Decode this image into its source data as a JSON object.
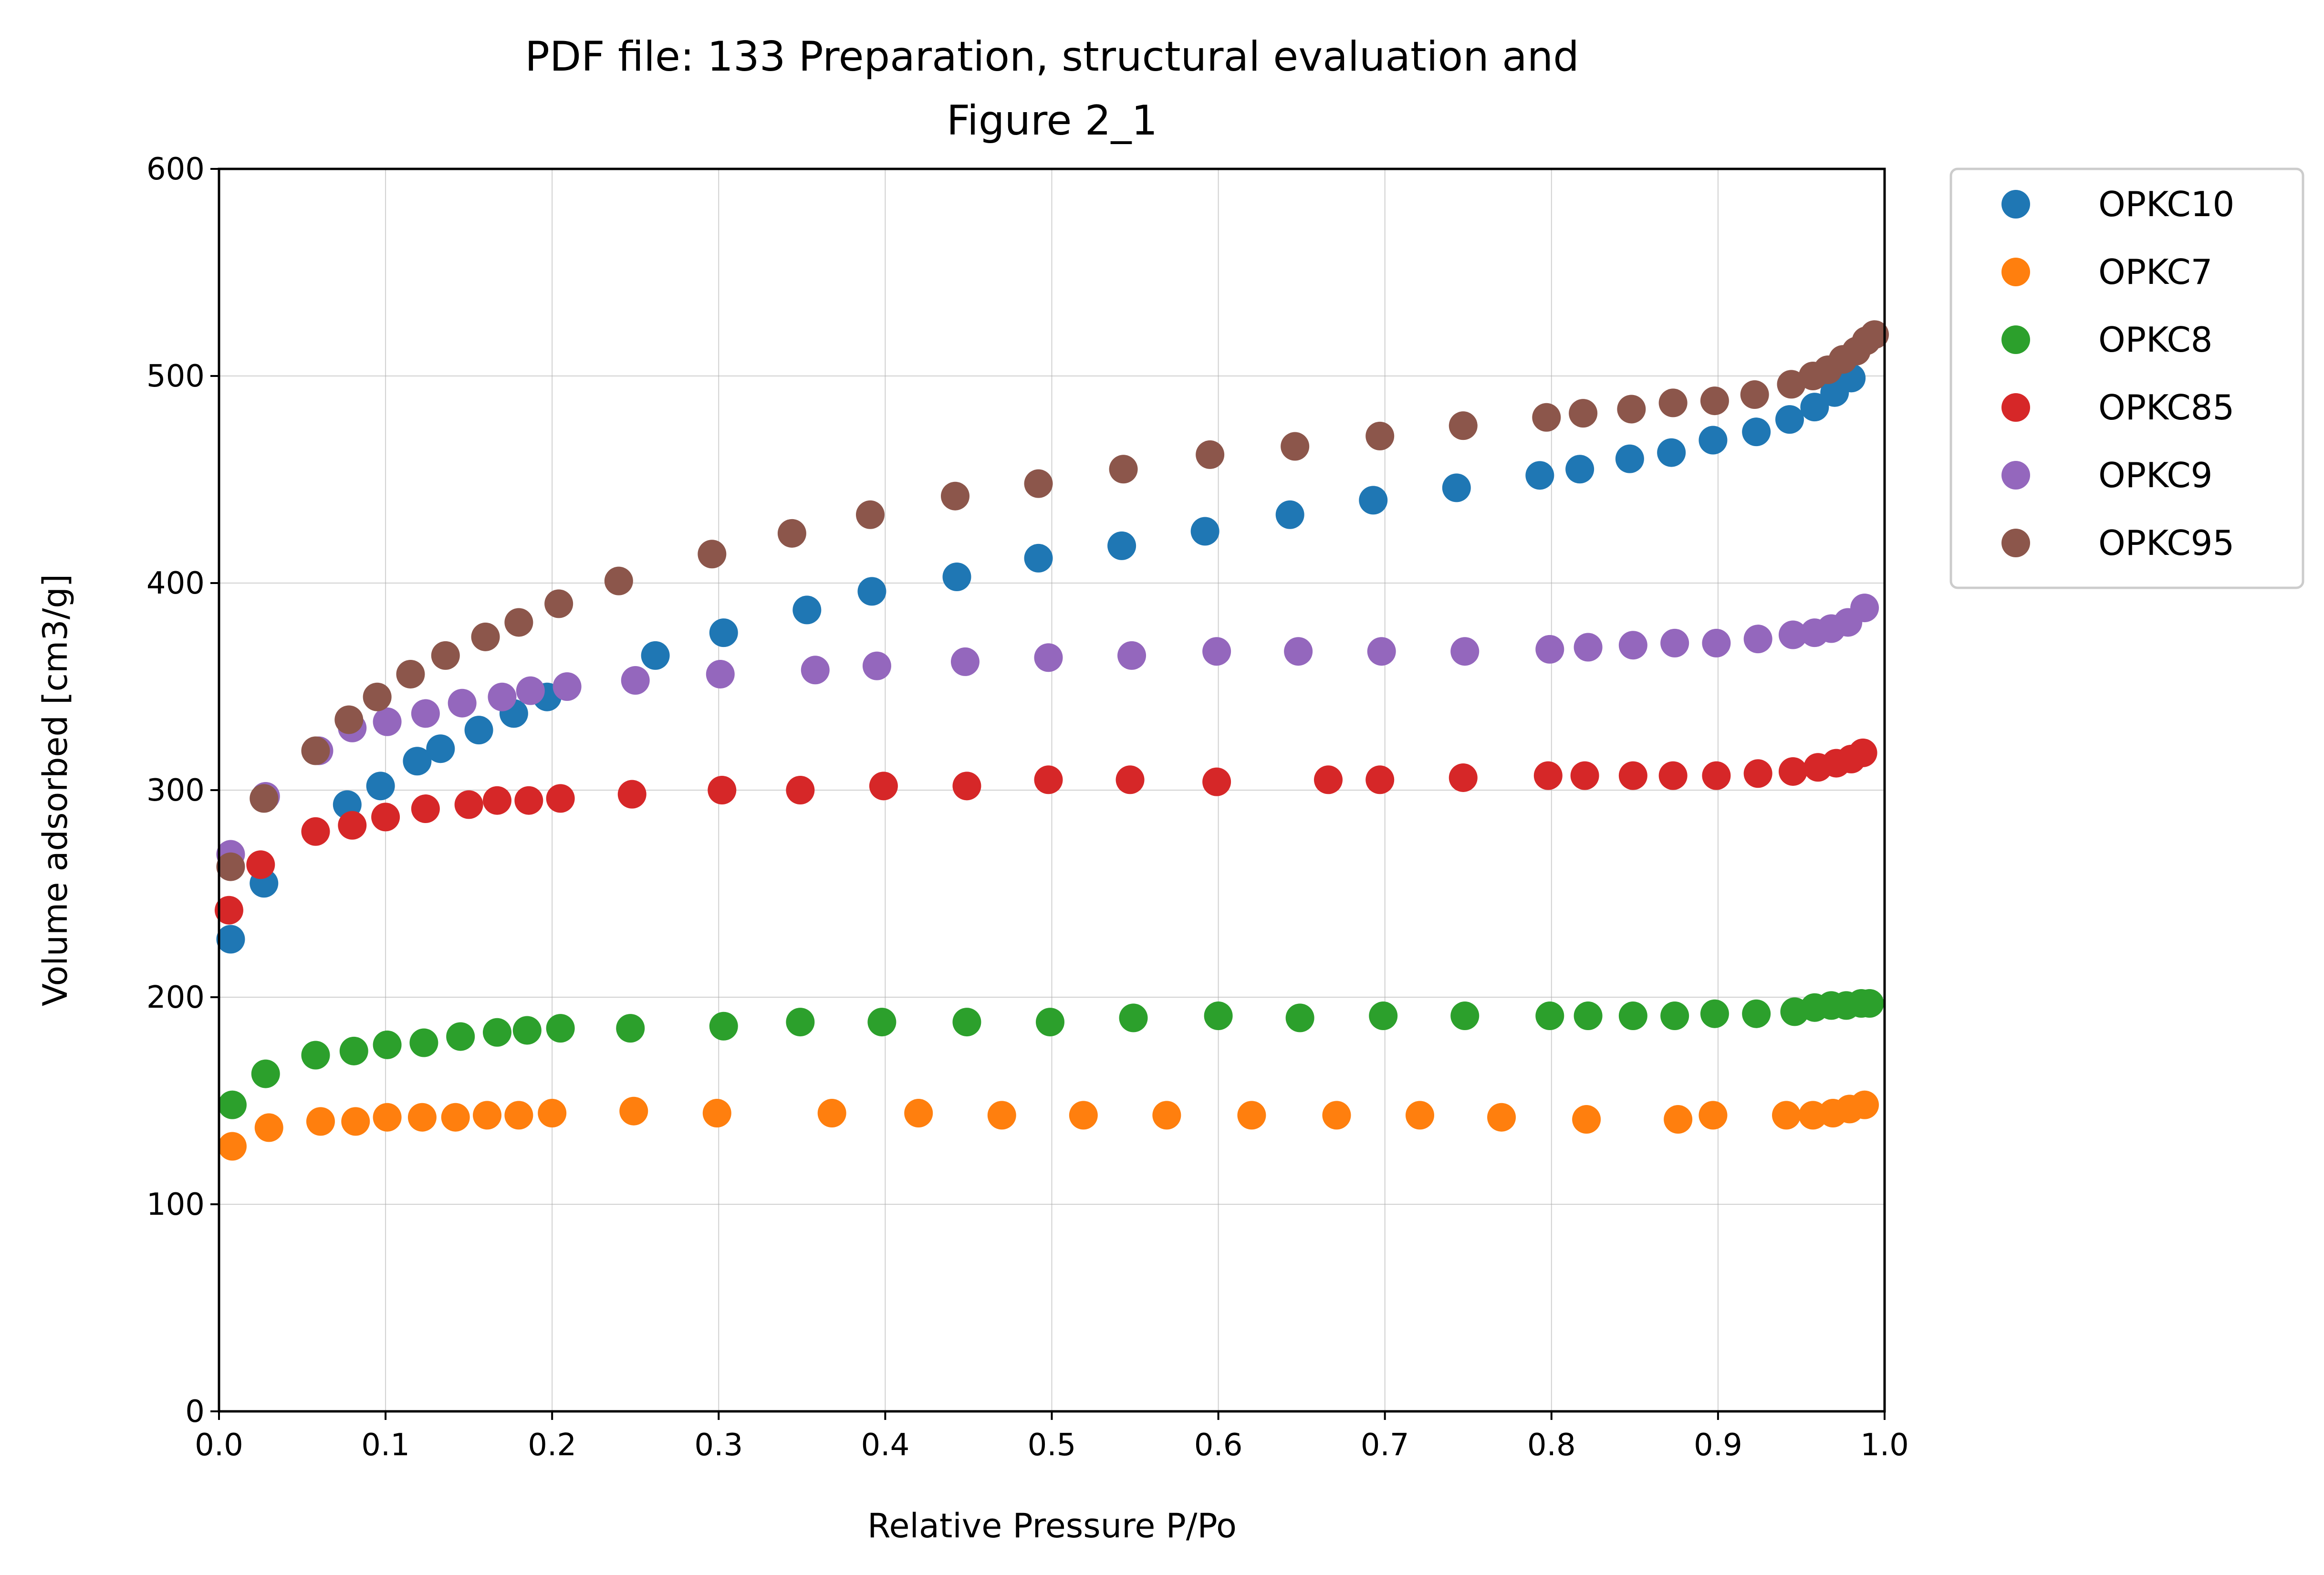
{
  "chart_data": {
    "type": "scatter",
    "title_line1": "PDF file: 133 Preparation, structural evaluation and",
    "title_line2": "Figure 2_1",
    "xlabel": "Relative Pressure P/Po",
    "ylabel": "Volume adsorbed [cm3/g]",
    "xlim": [
      0.0,
      1.0
    ],
    "ylim": [
      0,
      600
    ],
    "xticks": [
      "0.0",
      "0.1",
      "0.2",
      "0.3",
      "0.4",
      "0.5",
      "0.6",
      "0.7",
      "0.8",
      "0.9",
      "1.0"
    ],
    "yticks": [
      "0",
      "100",
      "200",
      "300",
      "400",
      "500",
      "600"
    ],
    "grid": true,
    "legend_position": "outside-top-right",
    "series": [
      {
        "name": "OPKC10",
        "color": "#1f77b4",
        "x": [
          0.007,
          0.027,
          0.077,
          0.097,
          0.119,
          0.133,
          0.156,
          0.177,
          0.197,
          0.262,
          0.303,
          0.353,
          0.392,
          0.443,
          0.492,
          0.542,
          0.592,
          0.643,
          0.693,
          0.743,
          0.793,
          0.817,
          0.847,
          0.872,
          0.897,
          0.923,
          0.943,
          0.958,
          0.97,
          0.98
        ],
        "y": [
          228,
          255,
          293,
          302,
          314,
          320,
          329,
          337,
          345,
          365,
          376,
          387,
          396,
          403,
          412,
          418,
          425,
          433,
          440,
          446,
          452,
          455,
          460,
          463,
          469,
          473,
          479,
          485,
          492,
          499
        ]
      },
      {
        "name": "OPKC7",
        "color": "#ff7f0e",
        "x": [
          0.008,
          0.03,
          0.061,
          0.082,
          0.101,
          0.122,
          0.142,
          0.161,
          0.18,
          0.2,
          0.249,
          0.299,
          0.368,
          0.42,
          0.47,
          0.519,
          0.569,
          0.62,
          0.671,
          0.721,
          0.77,
          0.821,
          0.876,
          0.897,
          0.941,
          0.957,
          0.969,
          0.979,
          0.988
        ],
        "y": [
          128,
          137,
          140,
          140,
          142,
          142,
          142,
          143,
          143,
          144,
          145,
          144,
          144,
          144,
          143,
          143,
          143,
          143,
          143,
          143,
          142,
          141,
          141,
          143,
          143,
          143,
          144,
          146,
          148
        ]
      },
      {
        "name": "OPKC8",
        "color": "#2ca02c",
        "x": [
          0.008,
          0.028,
          0.058,
          0.081,
          0.101,
          0.123,
          0.145,
          0.167,
          0.185,
          0.205,
          0.247,
          0.303,
          0.349,
          0.398,
          0.449,
          0.499,
          0.549,
          0.6,
          0.649,
          0.699,
          0.748,
          0.799,
          0.822,
          0.849,
          0.874,
          0.898,
          0.923,
          0.946,
          0.958,
          0.968,
          0.977,
          0.986,
          0.991
        ],
        "y": [
          148,
          163,
          172,
          174,
          177,
          178,
          181,
          183,
          184,
          185,
          185,
          186,
          188,
          188,
          188,
          188,
          190,
          191,
          190,
          191,
          191,
          191,
          191,
          191,
          191,
          192,
          192,
          193,
          195,
          196,
          196,
          197,
          197
        ]
      },
      {
        "name": "OPKC85",
        "color": "#d62728",
        "x": [
          0.006,
          0.025,
          0.058,
          0.08,
          0.1,
          0.124,
          0.15,
          0.167,
          0.186,
          0.205,
          0.248,
          0.302,
          0.349,
          0.399,
          0.449,
          0.498,
          0.547,
          0.599,
          0.666,
          0.697,
          0.747,
          0.798,
          0.82,
          0.849,
          0.873,
          0.899,
          0.924,
          0.945,
          0.96,
          0.971,
          0.98,
          0.987
        ],
        "y": [
          242,
          264,
          280,
          283,
          287,
          291,
          293,
          295,
          295,
          296,
          298,
          300,
          300,
          302,
          302,
          305,
          305,
          304,
          305,
          305,
          306,
          307,
          307,
          307,
          307,
          307,
          308,
          309,
          311,
          313,
          315,
          318
        ]
      },
      {
        "name": "OPKC9",
        "color": "#9467bd",
        "x": [
          0.007,
          0.028,
          0.06,
          0.08,
          0.101,
          0.124,
          0.146,
          0.17,
          0.187,
          0.209,
          0.25,
          0.301,
          0.358,
          0.395,
          0.448,
          0.498,
          0.548,
          0.599,
          0.648,
          0.698,
          0.748,
          0.799,
          0.822,
          0.849,
          0.874,
          0.899,
          0.924,
          0.945,
          0.958,
          0.968,
          0.978,
          0.988
        ],
        "y": [
          269,
          297,
          319,
          330,
          333,
          337,
          342,
          345,
          348,
          350,
          353,
          356,
          358,
          360,
          362,
          364,
          365,
          367,
          367,
          367,
          367,
          368,
          369,
          370,
          371,
          371,
          373,
          375,
          376,
          378,
          381,
          388
        ]
      },
      {
        "name": "OPKC95",
        "color": "#8c564b",
        "x": [
          0.007,
          0.027,
          0.058,
          0.078,
          0.095,
          0.115,
          0.136,
          0.16,
          0.18,
          0.204,
          0.24,
          0.296,
          0.344,
          0.391,
          0.442,
          0.492,
          0.543,
          0.595,
          0.646,
          0.697,
          0.747,
          0.797,
          0.819,
          0.848,
          0.873,
          0.898,
          0.922,
          0.944,
          0.957,
          0.966,
          0.975,
          0.983,
          0.989,
          0.994
        ],
        "y": [
          263,
          296,
          319,
          334,
          345,
          356,
          365,
          374,
          381,
          390,
          401,
          414,
          424,
          433,
          442,
          448,
          455,
          462,
          466,
          471,
          476,
          480,
          482,
          484,
          487,
          488,
          491,
          496,
          500,
          503,
          508,
          512,
          517,
          520
        ]
      }
    ]
  }
}
